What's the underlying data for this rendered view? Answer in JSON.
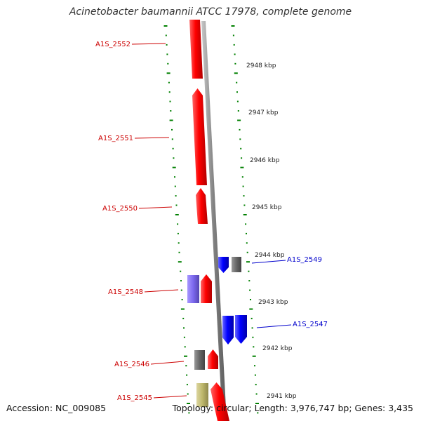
{
  "header": {
    "title": "Acinetobacter baumannii ATCC 17978, complete genome"
  },
  "footer": {
    "accession": "Accession: NC_009085",
    "topology": "Topology: circular; Length: 3,976,747 bp; Genes: 3,435"
  },
  "colors": {
    "forward_gene": "#ff0000",
    "reverse_gene": "#0000ff",
    "gray_feature": "#666666",
    "purple_feature": "#7b68ee",
    "olive_feature": "#bdb76b",
    "backbone": "#808080",
    "tick": "#008000",
    "label_forward": "#cc0000",
    "label_reverse": "#0000cc"
  },
  "scale": {
    "kbp_labels": [
      "2948 kbp",
      "2947 kbp",
      "2946 kbp",
      "2945 kbp",
      "2944 kbp",
      "2943 kbp",
      "2942 kbp",
      "2941 kbp"
    ]
  },
  "genes": [
    {
      "name": "A1S_2552",
      "strand": "forward",
      "color": "red"
    },
    {
      "name": "A1S_2551",
      "strand": "forward",
      "color": "red"
    },
    {
      "name": "A1S_2550",
      "strand": "forward",
      "color": "red"
    },
    {
      "name": "A1S_2549",
      "strand": "reverse",
      "color": "blue"
    },
    {
      "name": "A1S_2548",
      "strand": "forward",
      "color": "red"
    },
    {
      "name": "A1S_2547",
      "strand": "reverse",
      "color": "blue"
    },
    {
      "name": "A1S_2546",
      "strand": "forward",
      "color": "red"
    },
    {
      "name": "A1S_2545",
      "strand": "forward",
      "color": "red"
    }
  ]
}
